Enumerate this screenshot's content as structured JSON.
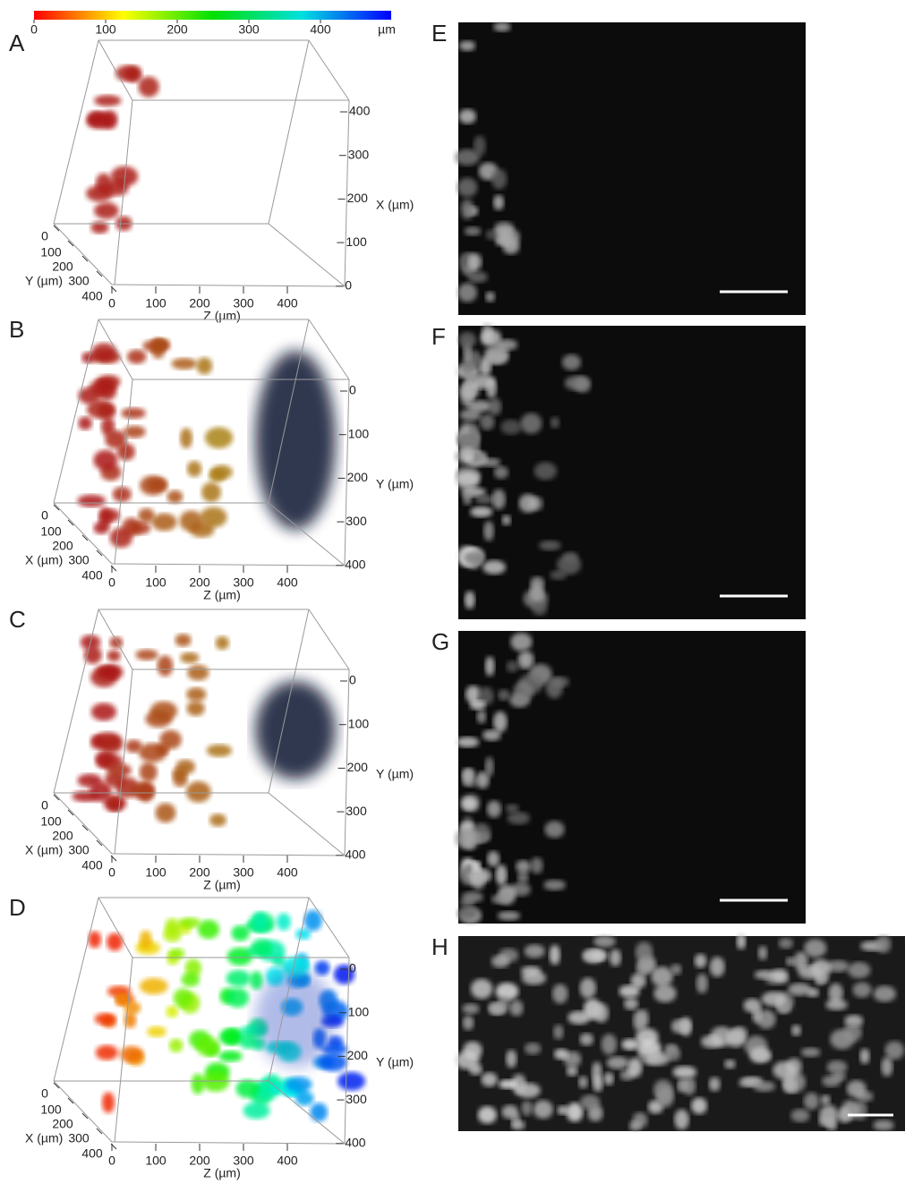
{
  "colorbar": {
    "ticks": [
      "0",
      "100",
      "200",
      "300",
      "400"
    ],
    "unit": "µm"
  },
  "panels_3d": [
    {
      "letter": "A",
      "right_ticks": [
        "400",
        "300",
        "200",
        "100",
        "0"
      ],
      "right_label": "X (µm)",
      "left_ticks": [
        "0",
        "100",
        "200",
        "300",
        "400"
      ],
      "left_label": "Y (µm)",
      "bottom_ticks": [
        "0",
        "100",
        "200",
        "300",
        "400"
      ],
      "bottom_label": "Z (µm)"
    },
    {
      "letter": "B",
      "right_ticks": [
        "0",
        "100",
        "200",
        "300",
        "400"
      ],
      "right_label": "Y (µm)",
      "left_ticks": [
        "0",
        "100",
        "200",
        "300",
        "400"
      ],
      "left_label": "X (µm)",
      "bottom_ticks": [
        "0",
        "100",
        "200",
        "300",
        "400"
      ],
      "bottom_label": "Z (µm)"
    },
    {
      "letter": "C",
      "right_ticks": [
        "0",
        "100",
        "200",
        "300",
        "400"
      ],
      "right_label": "Y (µm)",
      "left_ticks": [
        "0",
        "100",
        "200",
        "300",
        "400"
      ],
      "left_label": "X (µm)",
      "bottom_ticks": [
        "0",
        "100",
        "200",
        "300",
        "400"
      ],
      "bottom_label": "Z (µm)"
    },
    {
      "letter": "D",
      "right_ticks": [
        "0",
        "100",
        "200",
        "300",
        "400"
      ],
      "right_label": "Y (µm)",
      "left_ticks": [
        "0",
        "100",
        "200",
        "300",
        "400"
      ],
      "left_label": "X (µm)",
      "bottom_ticks": [
        "0",
        "100",
        "200",
        "300",
        "400"
      ],
      "bottom_label": "Z (µm)"
    }
  ],
  "panels_image": [
    {
      "letter": "E"
    },
    {
      "letter": "F"
    },
    {
      "letter": "G"
    },
    {
      "letter": "H"
    }
  ]
}
